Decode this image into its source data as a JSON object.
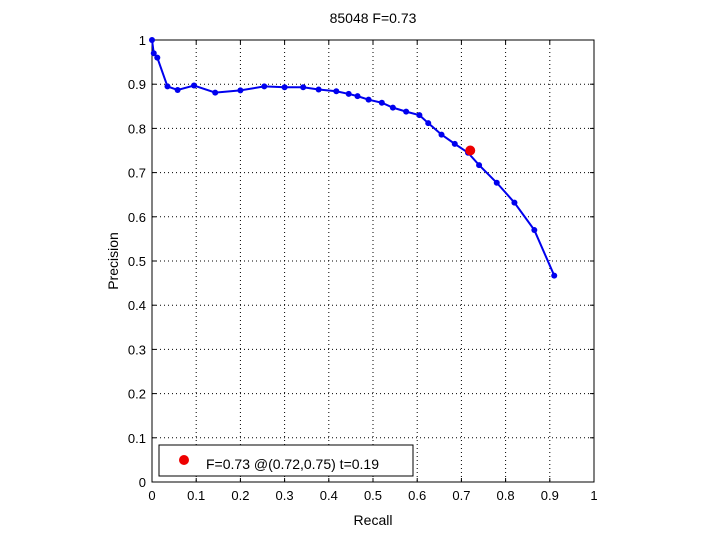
{
  "chart_data": {
    "type": "line",
    "title": "85048 F=0.73",
    "xlabel": "Recall",
    "ylabel": "Precision",
    "xlim": [
      0,
      1
    ],
    "ylim": [
      0,
      1
    ],
    "xticks": [
      "0",
      "0.1",
      "0.2",
      "0.3",
      "0.4",
      "0.5",
      "0.6",
      "0.7",
      "0.8",
      "0.9",
      "1"
    ],
    "yticks": [
      "0",
      "0.1",
      "0.2",
      "0.3",
      "0.4",
      "0.5",
      "0.6",
      "0.7",
      "0.8",
      "0.9",
      "1"
    ],
    "grid": true,
    "grid_style": "dotted",
    "series": [
      {
        "color": "#0000ee",
        "marker": "dot",
        "x": [
          0.0,
          0.004,
          0.012,
          0.035,
          0.058,
          0.095,
          0.143,
          0.2,
          0.254,
          0.3,
          0.342,
          0.377,
          0.417,
          0.445,
          0.465,
          0.49,
          0.52,
          0.545,
          0.575,
          0.605,
          0.625,
          0.655,
          0.685,
          0.715,
          0.74,
          0.78,
          0.82,
          0.865,
          0.91
        ],
        "y": [
          1.0,
          0.97,
          0.96,
          0.895,
          0.887,
          0.897,
          0.881,
          0.886,
          0.895,
          0.893,
          0.893,
          0.888,
          0.884,
          0.878,
          0.873,
          0.865,
          0.858,
          0.847,
          0.838,
          0.83,
          0.812,
          0.786,
          0.765,
          0.745,
          0.717,
          0.677,
          0.632,
          0.57,
          0.467
        ]
      }
    ],
    "highlight": {
      "x": 0.72,
      "y": 0.75,
      "color": "#ee0000"
    },
    "legend": {
      "position": "bottom-left",
      "entries": [
        {
          "label": "F=0.73 @(0.72,0.75) t=0.19",
          "color": "#ee0000",
          "marker": "dot"
        }
      ]
    }
  }
}
